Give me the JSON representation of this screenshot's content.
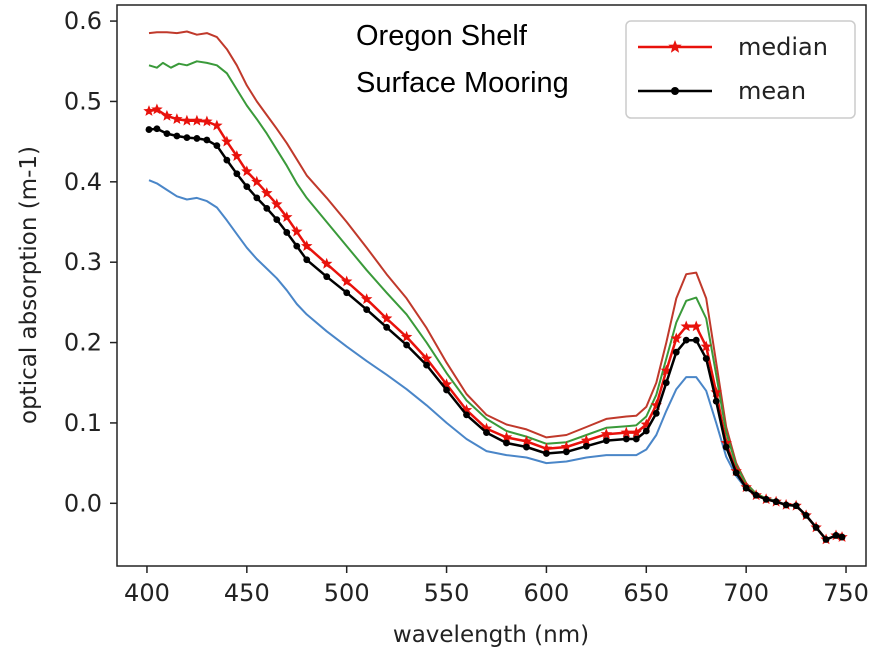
{
  "chart_data": {
    "type": "line",
    "title": "",
    "xlabel": "wavelength (nm)",
    "ylabel": "optical absorption (m-1)",
    "xlim": [
      385,
      760
    ],
    "ylim": [
      -0.078,
      0.62
    ],
    "xticks": [
      400,
      450,
      500,
      550,
      600,
      650,
      700,
      750
    ],
    "yticks": [
      0.0,
      0.1,
      0.2,
      0.3,
      0.4,
      0.5,
      0.6
    ],
    "ytick_labels": [
      "0.0",
      "0.1",
      "0.2",
      "0.3",
      "0.4",
      "0.5",
      "0.6"
    ],
    "grid": false,
    "legend_position": "top-right",
    "annotation": [
      "Oregon Shelf",
      "Surface Mooring"
    ],
    "series": [
      {
        "color": "#c0392b",
        "marker": "none",
        "points": [
          [
            401,
            0.585
          ],
          [
            405,
            0.586
          ],
          [
            410,
            0.586
          ],
          [
            415,
            0.585
          ],
          [
            420,
            0.587
          ],
          [
            425,
            0.583
          ],
          [
            430,
            0.585
          ],
          [
            435,
            0.58
          ],
          [
            440,
            0.565
          ],
          [
            445,
            0.545
          ],
          [
            450,
            0.52
          ],
          [
            455,
            0.5
          ],
          [
            460,
            0.483
          ],
          [
            465,
            0.466
          ],
          [
            470,
            0.448
          ],
          [
            475,
            0.428
          ],
          [
            480,
            0.408
          ],
          [
            490,
            0.38
          ],
          [
            500,
            0.35
          ],
          [
            510,
            0.318
          ],
          [
            520,
            0.285
          ],
          [
            530,
            0.255
          ],
          [
            540,
            0.218
          ],
          [
            550,
            0.175
          ],
          [
            560,
            0.136
          ],
          [
            570,
            0.11
          ],
          [
            580,
            0.098
          ],
          [
            590,
            0.092
          ],
          [
            600,
            0.082
          ],
          [
            610,
            0.085
          ],
          [
            620,
            0.095
          ],
          [
            630,
            0.105
          ],
          [
            640,
            0.108
          ],
          [
            645,
            0.109
          ],
          [
            650,
            0.12
          ],
          [
            655,
            0.15
          ],
          [
            660,
            0.2
          ],
          [
            665,
            0.255
          ],
          [
            670,
            0.285
          ],
          [
            675,
            0.287
          ],
          [
            680,
            0.255
          ],
          [
            685,
            0.175
          ],
          [
            690,
            0.095
          ],
          [
            695,
            0.05
          ],
          [
            700,
            0.025
          ],
          [
            705,
            0.012
          ],
          [
            710,
            0.006
          ],
          [
            715,
            0.003
          ],
          [
            720,
            -0.002
          ],
          [
            725,
            -0.003
          ],
          [
            730,
            -0.015
          ],
          [
            735,
            -0.03
          ],
          [
            740,
            -0.045
          ],
          [
            745,
            -0.04
          ],
          [
            748,
            -0.042
          ]
        ]
      },
      {
        "color": "#3a9a3a",
        "marker": "none",
        "points": [
          [
            401,
            0.545
          ],
          [
            405,
            0.542
          ],
          [
            408,
            0.548
          ],
          [
            412,
            0.542
          ],
          [
            416,
            0.547
          ],
          [
            420,
            0.545
          ],
          [
            425,
            0.55
          ],
          [
            430,
            0.548
          ],
          [
            435,
            0.545
          ],
          [
            440,
            0.535
          ],
          [
            445,
            0.515
          ],
          [
            450,
            0.495
          ],
          [
            455,
            0.478
          ],
          [
            460,
            0.46
          ],
          [
            465,
            0.44
          ],
          [
            470,
            0.42
          ],
          [
            475,
            0.398
          ],
          [
            480,
            0.38
          ],
          [
            490,
            0.35
          ],
          [
            500,
            0.32
          ],
          [
            510,
            0.29
          ],
          [
            520,
            0.262
          ],
          [
            530,
            0.235
          ],
          [
            540,
            0.2
          ],
          [
            550,
            0.162
          ],
          [
            560,
            0.128
          ],
          [
            570,
            0.105
          ],
          [
            580,
            0.09
          ],
          [
            590,
            0.083
          ],
          [
            600,
            0.074
          ],
          [
            610,
            0.076
          ],
          [
            620,
            0.085
          ],
          [
            630,
            0.094
          ],
          [
            640,
            0.096
          ],
          [
            645,
            0.097
          ],
          [
            650,
            0.108
          ],
          [
            655,
            0.135
          ],
          [
            660,
            0.18
          ],
          [
            665,
            0.225
          ],
          [
            670,
            0.252
          ],
          [
            675,
            0.256
          ],
          [
            680,
            0.23
          ],
          [
            685,
            0.16
          ],
          [
            690,
            0.088
          ],
          [
            695,
            0.047
          ],
          [
            700,
            0.024
          ],
          [
            705,
            0.012
          ],
          [
            710,
            0.006
          ],
          [
            715,
            0.003
          ],
          [
            720,
            -0.002
          ],
          [
            725,
            -0.003
          ],
          [
            730,
            -0.015
          ],
          [
            735,
            -0.03
          ],
          [
            740,
            -0.045
          ],
          [
            745,
            -0.04
          ],
          [
            748,
            -0.042
          ]
        ]
      },
      {
        "color": "#4a86c8",
        "marker": "none",
        "points": [
          [
            401,
            0.402
          ],
          [
            405,
            0.398
          ],
          [
            410,
            0.39
          ],
          [
            415,
            0.382
          ],
          [
            420,
            0.378
          ],
          [
            425,
            0.38
          ],
          [
            430,
            0.376
          ],
          [
            435,
            0.368
          ],
          [
            440,
            0.352
          ],
          [
            445,
            0.335
          ],
          [
            450,
            0.318
          ],
          [
            455,
            0.304
          ],
          [
            460,
            0.292
          ],
          [
            465,
            0.28
          ],
          [
            470,
            0.265
          ],
          [
            475,
            0.248
          ],
          [
            480,
            0.235
          ],
          [
            490,
            0.214
          ],
          [
            500,
            0.195
          ],
          [
            510,
            0.177
          ],
          [
            520,
            0.16
          ],
          [
            530,
            0.142
          ],
          [
            540,
            0.122
          ],
          [
            550,
            0.1
          ],
          [
            560,
            0.08
          ],
          [
            570,
            0.065
          ],
          [
            580,
            0.06
          ],
          [
            590,
            0.057
          ],
          [
            600,
            0.05
          ],
          [
            610,
            0.052
          ],
          [
            620,
            0.057
          ],
          [
            630,
            0.06
          ],
          [
            640,
            0.06
          ],
          [
            645,
            0.06
          ],
          [
            650,
            0.067
          ],
          [
            655,
            0.085
          ],
          [
            660,
            0.115
          ],
          [
            665,
            0.142
          ],
          [
            670,
            0.157
          ],
          [
            675,
            0.157
          ],
          [
            680,
            0.14
          ],
          [
            685,
            0.1
          ],
          [
            690,
            0.058
          ],
          [
            695,
            0.034
          ],
          [
            700,
            0.018
          ],
          [
            705,
            0.01
          ],
          [
            710,
            0.005
          ],
          [
            715,
            0.003
          ],
          [
            720,
            -0.002
          ],
          [
            725,
            -0.003
          ],
          [
            730,
            -0.015
          ],
          [
            735,
            -0.03
          ],
          [
            740,
            -0.045
          ],
          [
            745,
            -0.04
          ],
          [
            748,
            -0.042
          ]
        ]
      },
      {
        "name": "median",
        "color": "#e8120c",
        "marker": "star",
        "points": [
          [
            401,
            0.488
          ],
          [
            405,
            0.49
          ],
          [
            410,
            0.482
          ],
          [
            415,
            0.478
          ],
          [
            420,
            0.476
          ],
          [
            425,
            0.476
          ],
          [
            430,
            0.475
          ],
          [
            435,
            0.47
          ],
          [
            440,
            0.45
          ],
          [
            445,
            0.432
          ],
          [
            450,
            0.413
          ],
          [
            455,
            0.4
          ],
          [
            460,
            0.386
          ],
          [
            465,
            0.372
          ],
          [
            470,
            0.356
          ],
          [
            475,
            0.338
          ],
          [
            480,
            0.32
          ],
          [
            490,
            0.298
          ],
          [
            500,
            0.276
          ],
          [
            510,
            0.254
          ],
          [
            520,
            0.23
          ],
          [
            530,
            0.207
          ],
          [
            540,
            0.18
          ],
          [
            550,
            0.148
          ],
          [
            560,
            0.116
          ],
          [
            570,
            0.093
          ],
          [
            580,
            0.082
          ],
          [
            590,
            0.077
          ],
          [
            600,
            0.068
          ],
          [
            610,
            0.07
          ],
          [
            620,
            0.078
          ],
          [
            630,
            0.086
          ],
          [
            640,
            0.088
          ],
          [
            645,
            0.088
          ],
          [
            650,
            0.098
          ],
          [
            655,
            0.122
          ],
          [
            660,
            0.165
          ],
          [
            665,
            0.205
          ],
          [
            670,
            0.22
          ],
          [
            675,
            0.22
          ],
          [
            680,
            0.195
          ],
          [
            685,
            0.138
          ],
          [
            690,
            0.075
          ],
          [
            695,
            0.04
          ],
          [
            700,
            0.02
          ],
          [
            705,
            0.01
          ],
          [
            710,
            0.005
          ],
          [
            715,
            0.002
          ],
          [
            720,
            -0.002
          ],
          [
            725,
            -0.003
          ],
          [
            730,
            -0.015
          ],
          [
            735,
            -0.03
          ],
          [
            740,
            -0.045
          ],
          [
            745,
            -0.04
          ],
          [
            748,
            -0.042
          ]
        ]
      },
      {
        "name": "mean",
        "color": "#000000",
        "marker": "dot",
        "points": [
          [
            401,
            0.465
          ],
          [
            405,
            0.466
          ],
          [
            410,
            0.46
          ],
          [
            415,
            0.457
          ],
          [
            420,
            0.455
          ],
          [
            425,
            0.454
          ],
          [
            430,
            0.452
          ],
          [
            435,
            0.445
          ],
          [
            440,
            0.427
          ],
          [
            445,
            0.41
          ],
          [
            450,
            0.394
          ],
          [
            455,
            0.38
          ],
          [
            460,
            0.367
          ],
          [
            465,
            0.353
          ],
          [
            470,
            0.337
          ],
          [
            475,
            0.32
          ],
          [
            480,
            0.303
          ],
          [
            490,
            0.282
          ],
          [
            500,
            0.262
          ],
          [
            510,
            0.241
          ],
          [
            520,
            0.219
          ],
          [
            530,
            0.197
          ],
          [
            540,
            0.172
          ],
          [
            550,
            0.141
          ],
          [
            560,
            0.11
          ],
          [
            570,
            0.088
          ],
          [
            580,
            0.075
          ],
          [
            590,
            0.07
          ],
          [
            600,
            0.062
          ],
          [
            610,
            0.064
          ],
          [
            620,
            0.071
          ],
          [
            630,
            0.078
          ],
          [
            640,
            0.08
          ],
          [
            645,
            0.08
          ],
          [
            650,
            0.09
          ],
          [
            655,
            0.112
          ],
          [
            660,
            0.15
          ],
          [
            665,
            0.188
          ],
          [
            670,
            0.203
          ],
          [
            675,
            0.203
          ],
          [
            680,
            0.18
          ],
          [
            685,
            0.127
          ],
          [
            690,
            0.07
          ],
          [
            695,
            0.038
          ],
          [
            700,
            0.019
          ],
          [
            705,
            0.01
          ],
          [
            710,
            0.005
          ],
          [
            715,
            0.002
          ],
          [
            720,
            -0.002
          ],
          [
            725,
            -0.003
          ],
          [
            730,
            -0.015
          ],
          [
            735,
            -0.03
          ],
          [
            740,
            -0.045
          ],
          [
            745,
            -0.04
          ],
          [
            748,
            -0.042
          ]
        ]
      }
    ]
  }
}
